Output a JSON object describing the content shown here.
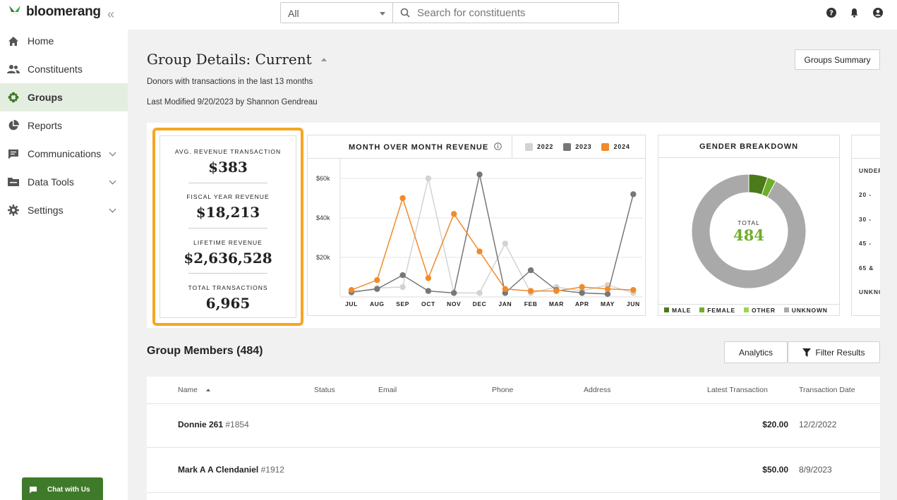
{
  "app": {
    "name": "bloomerang"
  },
  "search": {
    "scope": "All",
    "placeholder": "Search for constituents"
  },
  "sidebar": {
    "items": [
      {
        "label": "Home",
        "icon": "home-icon"
      },
      {
        "label": "Constituents",
        "icon": "people-icon"
      },
      {
        "label": "Groups",
        "icon": "groups-icon",
        "active": true
      },
      {
        "label": "Reports",
        "icon": "pie-chart-icon"
      },
      {
        "label": "Communications",
        "icon": "chat-icon",
        "expandable": true
      },
      {
        "label": "Data Tools",
        "icon": "folder-icon",
        "expandable": true
      },
      {
        "label": "Settings",
        "icon": "gear-icon",
        "expandable": true
      }
    ],
    "chat_label": "Chat with Us"
  },
  "page": {
    "title": "Group Details: Current",
    "description": "Donors with transactions in the last 13 months",
    "modified": "Last Modified 9/20/2023 by Shannon Gendreau",
    "groups_summary_label": "Groups Summary"
  },
  "stats": [
    {
      "label": "AVG. REVENUE TRANSACTION",
      "value": "$383"
    },
    {
      "label": "FISCAL YEAR REVENUE",
      "value": "$18,213"
    },
    {
      "label": "LIFETIME REVENUE",
      "value": "$2,636,528"
    },
    {
      "label": "TOTAL TRANSACTIONS",
      "value": "6,965"
    }
  ],
  "chart_data": [
    {
      "type": "line",
      "title": "MONTH OVER MONTH REVENUE",
      "categories": [
        "JUL",
        "AUG",
        "SEP",
        "OCT",
        "NOV",
        "DEC",
        "JAN",
        "FEB",
        "MAR",
        "APR",
        "MAY",
        "JUN"
      ],
      "y_ticks": [
        "$20k",
        "$40k",
        "$60k"
      ],
      "ylim": [
        0,
        70000
      ],
      "series": [
        {
          "name": "2022",
          "color": "#d3d3d3",
          "values": [
            2000,
            4500,
            5000,
            60000,
            2000,
            2000,
            27000,
            2000,
            5000,
            3000,
            6000,
            2000
          ]
        },
        {
          "name": "2023",
          "color": "#777777",
          "values": [
            2500,
            4000,
            11000,
            3000,
            2000,
            62000,
            2000,
            13500,
            3500,
            2000,
            1500,
            52000
          ]
        },
        {
          "name": "2024",
          "color": "#f28a2b",
          "values": [
            3500,
            8500,
            50000,
            9500,
            42000,
            23000,
            4000,
            3000,
            3000,
            5000,
            4000,
            3500
          ]
        }
      ],
      "grid": true
    },
    {
      "type": "pie",
      "title": "GENDER BREAKDOWN",
      "center_label": "TOTAL",
      "center_value": "484",
      "labels": [
        "MALE",
        "FEMALE",
        "OTHER",
        "UNKNOWN"
      ],
      "values": [
        26,
        12,
        0,
        446
      ],
      "colors": [
        "#4a7a1a",
        "#6fae2c",
        "#9ed35a",
        "#a9a9a9"
      ]
    }
  ],
  "age_labels": [
    "UNDER",
    "20 -",
    "30 -",
    "45 -",
    "65 &",
    "UNKNO"
  ],
  "members": {
    "title": "Group Members (484)",
    "analytics_label": "Analytics",
    "filter_label": "Filter Results",
    "columns": [
      "Name",
      "Status",
      "Email",
      "Phone",
      "Address",
      "Latest Transaction",
      "Transaction Date"
    ],
    "rows": [
      {
        "name": "Donnie 261",
        "id": "#1854",
        "amount": "$20.00",
        "date": "12/2/2022"
      },
      {
        "name": "Mark A A Clendaniel",
        "id": "#1912",
        "amount": "$50.00",
        "date": "8/9/2023"
      }
    ]
  }
}
